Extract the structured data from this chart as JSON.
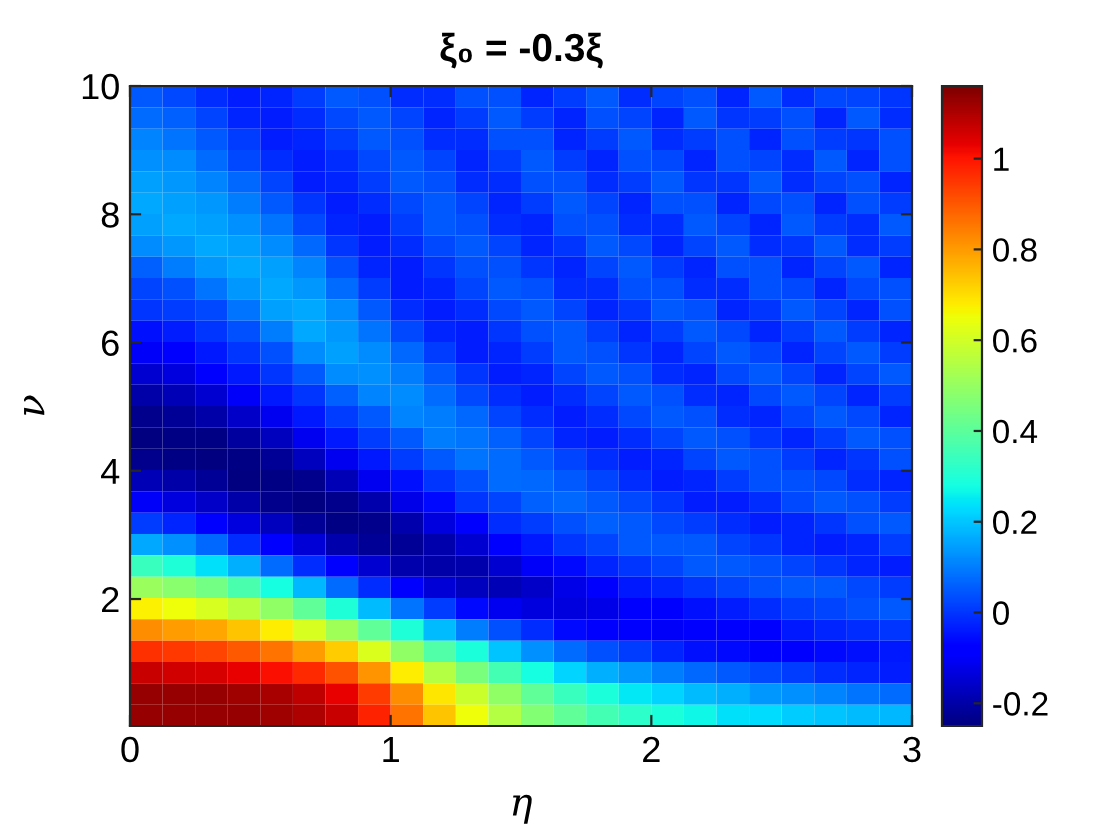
{
  "chart_data": {
    "type": "heatmap",
    "title": "ξ₀ = -0.3ξ",
    "xlabel": "η",
    "ylabel": "ν",
    "xlim": [
      0,
      3
    ],
    "xticks": [
      0,
      1,
      2,
      3
    ],
    "ylim": [
      0.02,
      10
    ],
    "yticks": [
      2,
      4,
      6,
      8,
      10
    ],
    "clim": [
      -0.25,
      1.16
    ],
    "cticks": [
      -0.2,
      0,
      0.2,
      0.4,
      0.6,
      0.8,
      1
    ],
    "cells": [
      [
        0.05,
        0.03,
        -0.01,
        -0.03,
        -0.02,
        0.01,
        0.05,
        0.04,
        -0.01,
        -0.01,
        0.04,
        0.04,
        -0.02,
        0.01,
        0.05,
        -0.01,
        0.02,
        0.04,
        -0.02,
        0.05,
        -0.01,
        0.03,
        0.02,
        0.0
      ],
      [
        0.08,
        0.06,
        0.02,
        -0.02,
        -0.03,
        -0.01,
        0.03,
        0.05,
        0.02,
        -0.02,
        0.01,
        0.05,
        0.01,
        -0.02,
        0.04,
        0.02,
        -0.02,
        0.05,
        0.0,
        0.01,
        0.04,
        -0.02,
        0.05,
        -0.01
      ],
      [
        0.11,
        0.09,
        0.05,
        0.01,
        -0.03,
        -0.02,
        0.01,
        0.05,
        0.04,
        -0.01,
        -0.01,
        0.04,
        0.04,
        -0.02,
        0.01,
        0.05,
        -0.01,
        0.01,
        0.04,
        -0.02,
        0.04,
        0.01,
        0.0,
        0.04
      ],
      [
        0.13,
        0.12,
        0.08,
        0.03,
        -0.01,
        -0.03,
        -0.01,
        0.03,
        0.05,
        0.02,
        -0.02,
        0.01,
        0.05,
        0.01,
        -0.02,
        0.04,
        0.03,
        -0.02,
        0.04,
        0.02,
        -0.01,
        0.05,
        -0.02,
        0.04
      ],
      [
        0.15,
        0.14,
        0.11,
        0.07,
        0.02,
        -0.03,
        -0.02,
        0.01,
        0.05,
        0.04,
        -0.01,
        -0.01,
        0.04,
        0.04,
        -0.01,
        0.01,
        0.05,
        0.0,
        0.0,
        0.05,
        -0.01,
        0.02,
        0.04,
        -0.02
      ],
      [
        0.16,
        0.15,
        0.14,
        0.1,
        0.05,
        0.0,
        -0.03,
        -0.01,
        0.03,
        0.05,
        0.02,
        -0.02,
        0.01,
        0.05,
        0.02,
        -0.02,
        0.04,
        0.04,
        -0.02,
        0.03,
        0.04,
        -0.02,
        0.04,
        0.01
      ],
      [
        0.15,
        0.16,
        0.15,
        0.13,
        0.09,
        0.03,
        -0.02,
        -0.03,
        0.01,
        0.05,
        0.04,
        -0.01,
        -0.02,
        0.04,
        0.04,
        -0.01,
        -0.01,
        0.05,
        0.02,
        -0.02,
        0.05,
        0.01,
        -0.01,
        0.05
      ],
      [
        0.12,
        0.14,
        0.16,
        0.15,
        0.12,
        0.07,
        0.0,
        -0.03,
        -0.01,
        0.03,
        0.05,
        0.02,
        -0.02,
        0.0,
        0.05,
        0.03,
        -0.02,
        0.02,
        0.05,
        -0.01,
        0.0,
        0.05,
        -0.01,
        0.01
      ],
      [
        0.06,
        0.1,
        0.14,
        0.16,
        0.15,
        0.11,
        0.04,
        -0.02,
        -0.03,
        0.0,
        0.04,
        0.04,
        0.0,
        -0.02,
        0.02,
        0.05,
        0.01,
        -0.02,
        0.04,
        0.04,
        -0.02,
        0.02,
        0.05,
        -0.02
      ],
      [
        0.02,
        0.04,
        0.09,
        0.14,
        0.16,
        0.14,
        0.08,
        0.01,
        -0.03,
        -0.02,
        0.02,
        0.05,
        0.04,
        -0.01,
        -0.01,
        0.04,
        0.04,
        -0.01,
        -0.01,
        0.04,
        0.03,
        -0.02,
        0.03,
        0.04
      ],
      [
        0.0,
        0.01,
        0.03,
        0.09,
        0.15,
        0.16,
        0.12,
        0.05,
        -0.01,
        -0.03,
        -0.01,
        0.03,
        0.05,
        0.02,
        -0.02,
        0.0,
        0.05,
        0.04,
        -0.02,
        0.0,
        0.05,
        0.02,
        -0.02,
        0.04
      ],
      [
        -0.05,
        -0.03,
        0.0,
        0.04,
        0.1,
        0.16,
        0.14,
        0.09,
        0.03,
        -0.02,
        -0.03,
        0.0,
        0.04,
        0.05,
        0.01,
        -0.02,
        0.01,
        0.05,
        0.03,
        -0.02,
        0.01,
        0.05,
        0.01,
        -0.02
      ],
      [
        -0.1,
        -0.08,
        -0.04,
        0.0,
        0.04,
        0.12,
        0.15,
        0.12,
        0.07,
        0.01,
        -0.03,
        -0.02,
        0.01,
        0.05,
        0.04,
        0.0,
        -0.02,
        0.02,
        0.05,
        0.02,
        -0.02,
        0.02,
        0.05,
        0.01
      ],
      [
        -0.15,
        -0.13,
        -0.09,
        -0.04,
        0.0,
        0.05,
        0.12,
        0.13,
        0.1,
        0.05,
        0.0,
        -0.03,
        -0.02,
        0.02,
        0.05,
        0.04,
        -0.01,
        -0.02,
        0.03,
        0.05,
        0.02,
        -0.02,
        0.02,
        0.05
      ],
      [
        -0.2,
        -0.18,
        -0.15,
        -0.1,
        -0.04,
        0.0,
        0.06,
        0.11,
        0.12,
        0.08,
        0.03,
        -0.01,
        -0.03,
        -0.01,
        0.02,
        0.05,
        0.04,
        -0.01,
        -0.02,
        0.03,
        0.05,
        0.02,
        -0.02,
        0.01
      ],
      [
        -0.23,
        -0.22,
        -0.2,
        -0.16,
        -0.11,
        -0.04,
        0.01,
        0.05,
        0.11,
        0.1,
        0.07,
        0.02,
        -0.01,
        -0.03,
        -0.01,
        0.03,
        0.05,
        0.04,
        -0.01,
        -0.02,
        0.02,
        0.05,
        0.03,
        -0.02
      ],
      [
        -0.25,
        -0.24,
        -0.24,
        -0.21,
        -0.17,
        -0.11,
        -0.04,
        0.01,
        0.05,
        0.1,
        0.09,
        0.06,
        0.02,
        -0.02,
        -0.03,
        -0.01,
        0.02,
        0.05,
        0.04,
        0.0,
        -0.02,
        0.01,
        0.05,
        0.04
      ],
      [
        -0.23,
        -0.24,
        -0.25,
        -0.24,
        -0.22,
        -0.17,
        -0.11,
        -0.04,
        0.01,
        0.05,
        0.09,
        0.08,
        0.05,
        0.02,
        -0.01,
        -0.03,
        -0.02,
        0.02,
        0.05,
        0.04,
        0.01,
        -0.02,
        0.0,
        0.04
      ],
      [
        -0.18,
        -0.2,
        -0.22,
        -0.25,
        -0.24,
        -0.23,
        -0.18,
        -0.11,
        -0.05,
        0.0,
        0.04,
        0.08,
        0.07,
        0.05,
        0.02,
        -0.01,
        -0.03,
        -0.02,
        0.01,
        0.04,
        0.04,
        0.03,
        -0.01,
        -0.02
      ],
      [
        -0.1,
        -0.13,
        -0.16,
        -0.2,
        -0.23,
        -0.25,
        -0.23,
        -0.19,
        -0.12,
        -0.06,
        0.0,
        0.02,
        0.06,
        0.07,
        0.05,
        0.03,
        0.0,
        -0.03,
        -0.03,
        -0.01,
        0.03,
        0.05,
        0.04,
        0.01
      ],
      [
        0.01,
        -0.02,
        -0.07,
        -0.13,
        -0.17,
        -0.22,
        -0.24,
        -0.23,
        -0.19,
        -0.13,
        -0.07,
        -0.01,
        0.01,
        0.04,
        0.06,
        0.05,
        0.03,
        0.01,
        -0.01,
        -0.03,
        -0.02,
        0.0,
        0.04,
        0.05
      ],
      [
        0.16,
        0.13,
        0.07,
        -0.01,
        -0.07,
        -0.14,
        -0.19,
        -0.22,
        -0.22,
        -0.19,
        -0.15,
        -0.09,
        -0.04,
        0.0,
        0.02,
        0.05,
        0.05,
        0.05,
        0.02,
        0.0,
        -0.02,
        -0.03,
        -0.02,
        0.01
      ],
      [
        0.34,
        0.3,
        0.24,
        0.17,
        0.08,
        -0.01,
        -0.09,
        -0.15,
        -0.19,
        -0.2,
        -0.19,
        -0.15,
        -0.1,
        -0.06,
        -0.02,
        0.0,
        0.02,
        0.05,
        0.05,
        0.04,
        0.02,
        0.0,
        -0.02,
        -0.03
      ],
      [
        0.51,
        0.48,
        0.44,
        0.37,
        0.28,
        0.18,
        0.08,
        -0.01,
        -0.08,
        -0.14,
        -0.17,
        -0.18,
        -0.16,
        -0.12,
        -0.08,
        -0.04,
        -0.02,
        0.0,
        0.02,
        0.04,
        0.05,
        0.05,
        0.03,
        0.01
      ],
      [
        0.67,
        0.65,
        0.61,
        0.56,
        0.49,
        0.41,
        0.3,
        0.19,
        0.09,
        0.01,
        -0.06,
        -0.11,
        -0.13,
        -0.13,
        -0.12,
        -0.09,
        -0.07,
        -0.05,
        -0.03,
        -0.01,
        0.01,
        0.02,
        0.04,
        0.05
      ],
      [
        0.82,
        0.8,
        0.78,
        0.74,
        0.68,
        0.61,
        0.52,
        0.41,
        0.3,
        0.19,
        0.1,
        0.04,
        -0.01,
        -0.06,
        -0.08,
        -0.09,
        -0.1,
        -0.09,
        -0.08,
        -0.07,
        -0.04,
        -0.02,
        -0.01,
        0.0
      ],
      [
        0.96,
        0.95,
        0.93,
        0.9,
        0.86,
        0.8,
        0.73,
        0.62,
        0.49,
        0.38,
        0.29,
        0.2,
        0.13,
        0.08,
        0.04,
        0.01,
        -0.02,
        -0.05,
        -0.06,
        -0.07,
        -0.07,
        -0.06,
        -0.05,
        -0.04
      ],
      [
        1.07,
        1.06,
        1.05,
        1.03,
        1.01,
        0.97,
        0.91,
        0.81,
        0.68,
        0.55,
        0.45,
        0.36,
        0.28,
        0.22,
        0.17,
        0.14,
        0.1,
        0.07,
        0.05,
        0.03,
        0.01,
        -0.01,
        -0.02,
        -0.03
      ],
      [
        1.13,
        1.13,
        1.13,
        1.12,
        1.11,
        1.08,
        1.03,
        0.94,
        0.82,
        0.69,
        0.59,
        0.49,
        0.41,
        0.34,
        0.29,
        0.25,
        0.22,
        0.19,
        0.17,
        0.14,
        0.13,
        0.11,
        0.09,
        0.08
      ],
      [
        1.13,
        1.13,
        1.13,
        1.13,
        1.12,
        1.1,
        1.07,
        0.98,
        0.86,
        0.74,
        0.65,
        0.55,
        0.47,
        0.41,
        0.36,
        0.32,
        0.29,
        0.27,
        0.24,
        0.23,
        0.21,
        0.2,
        0.19,
        0.18
      ]
    ]
  }
}
